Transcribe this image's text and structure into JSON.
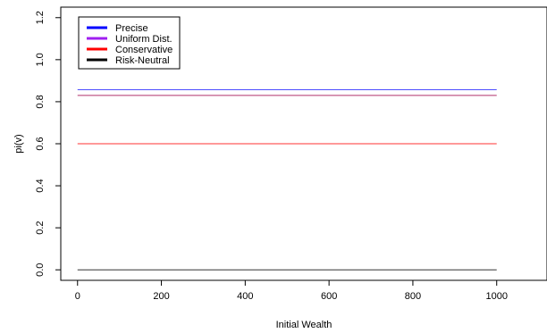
{
  "chart_data": {
    "type": "line",
    "title": "",
    "xlabel": "Initial Wealth",
    "ylabel": "pi(v)",
    "xlim": [
      -40,
      1120
    ],
    "ylim": [
      -0.05,
      1.25
    ],
    "x_ticks": [
      "0",
      "200",
      "400",
      "600",
      "800",
      "1000"
    ],
    "y_ticks": [
      "0.0",
      "0.2",
      "0.4",
      "0.6",
      "0.8",
      "1.0",
      "1.2"
    ],
    "grid": false,
    "legend_position": "top-left",
    "legend": [
      {
        "label": "Precise",
        "color": "#0000ff"
      },
      {
        "label": "Uniform Dist.",
        "color": "#a020f0"
      },
      {
        "label": "Conservative",
        "color": "#ff0000"
      },
      {
        "label": "Risk-Neutral",
        "color": "#000000"
      }
    ],
    "series": [
      {
        "x": [
          0,
          1000
        ],
        "y": [
          0.857,
          0.857
        ],
        "color": "#4d4dff"
      },
      {
        "x": [
          0,
          1000
        ],
        "y": [
          0.83,
          0.83
        ],
        "color": "#b0306a"
      },
      {
        "x": [
          0,
          1000
        ],
        "y": [
          0.6,
          0.6
        ],
        "color": "#ff3333"
      },
      {
        "x": [
          0,
          1000
        ],
        "y": [
          0.0,
          0.0
        ],
        "color": "#333333"
      }
    ]
  }
}
